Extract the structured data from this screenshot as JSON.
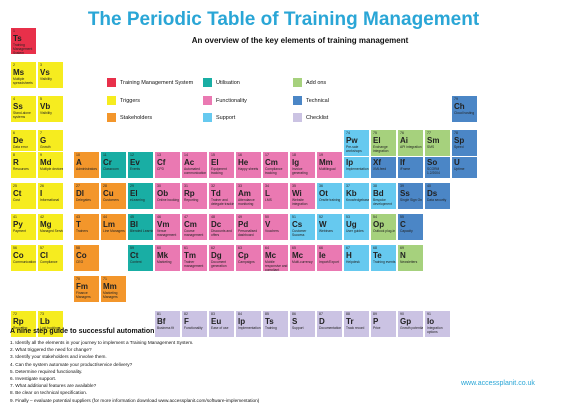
{
  "title": "The Periodic Table of Training Management",
  "subtitle": "An overview of the key elements of training management",
  "colors": {
    "yellow": "#f6ec1f",
    "red": "#e8304a",
    "orange": "#f3962b",
    "teal": "#19aea4",
    "pink": "#ea79b2",
    "lightblue": "#66c9ef",
    "green": "#a6d17d",
    "blue": "#4b86c6",
    "lavender": "#cbc3e3",
    "title_blue": "#2aa6d6"
  },
  "legend": [
    {
      "label": "Training Management System",
      "color": "red"
    },
    {
      "label": "Utilisation",
      "color": "teal"
    },
    {
      "label": "Add ons",
      "color": "green"
    },
    {
      "label": "Triggers",
      "color": "yellow"
    },
    {
      "label": "Functionality",
      "color": "pink"
    },
    {
      "label": "Technical",
      "color": "blue"
    },
    {
      "label": "Stakeholders",
      "color": "orange"
    },
    {
      "label": "Support",
      "color": "lightblue"
    },
    {
      "label": "Checklist",
      "color": "lavender"
    }
  ],
  "elements": [
    {
      "num": "1",
      "sym": "Ts",
      "name": "Training Management System",
      "color": "red"
    },
    {
      "num": "2",
      "sym": "Ms",
      "name": "Multiple spreadsheets",
      "color": "yellow"
    },
    {
      "num": "3",
      "sym": "Vs",
      "name": "Visibility",
      "color": "yellow"
    },
    {
      "num": "4",
      "sym": "Ss",
      "name": "Stand-alone systems",
      "color": "yellow"
    },
    {
      "num": "5",
      "sym": "Vb",
      "name": "Visibility",
      "color": "yellow"
    },
    {
      "num": "6",
      "sym": "De",
      "name": "Data error",
      "color": "yellow"
    },
    {
      "num": "7",
      "sym": "G",
      "name": "Growth",
      "color": "yellow"
    },
    {
      "num": "8",
      "sym": "R",
      "name": "Resources",
      "color": "yellow"
    },
    {
      "num": "9",
      "sym": "Md",
      "name": "Multiple devices",
      "color": "yellow"
    },
    {
      "num": "10",
      "sym": "A",
      "name": "Administrators",
      "color": "orange"
    },
    {
      "num": "11",
      "sym": "Cr",
      "name": "Classroom",
      "color": "teal"
    },
    {
      "num": "12",
      "sym": "Ev",
      "name": "Events",
      "color": "teal"
    },
    {
      "num": "13",
      "sym": "Cf",
      "name": "CPD",
      "color": "pink"
    },
    {
      "num": "14",
      "sym": "Ac",
      "name": "Automated communication",
      "color": "pink"
    },
    {
      "num": "15",
      "sym": "El",
      "name": "Equipment tracking",
      "color": "pink"
    },
    {
      "num": "16",
      "sym": "He",
      "name": "Happy sheets",
      "color": "pink"
    },
    {
      "num": "17",
      "sym": "Cm",
      "name": "Compliance tracking",
      "color": "pink"
    },
    {
      "num": "18",
      "sym": "Ig",
      "name": "Invoice generating",
      "color": "pink"
    },
    {
      "num": "19",
      "sym": "Mm",
      "name": "Multilingual",
      "color": "pink"
    },
    {
      "num": "20",
      "sym": "Ip",
      "name": "Implementation",
      "color": "lightblue"
    },
    {
      "num": "21",
      "sym": "Xf",
      "name": "XMLfeed",
      "color": "blue"
    },
    {
      "num": "22",
      "sym": "If",
      "name": "iFrame",
      "color": "blue"
    },
    {
      "num": "23",
      "sym": "So",
      "name": "SCORM 1.2/2004",
      "color": "blue"
    },
    {
      "num": "24",
      "sym": "U",
      "name": "Uptime",
      "color": "blue"
    },
    {
      "num": "25",
      "sym": "Ct",
      "name": "Cost",
      "color": "yellow"
    },
    {
      "num": "26",
      "sym": "I",
      "name": "Informational",
      "color": "yellow"
    },
    {
      "num": "27",
      "sym": "Dl",
      "name": "Delegates",
      "color": "orange"
    },
    {
      "num": "28",
      "sym": "Cu",
      "name": "Customers",
      "color": "orange"
    },
    {
      "num": "29",
      "sym": "El",
      "name": "eLearning",
      "color": "teal"
    },
    {
      "num": "30",
      "sym": "Ob",
      "name": "Online booking",
      "color": "pink"
    },
    {
      "num": "31",
      "sym": "Rp",
      "name": "Reporting",
      "color": "pink"
    },
    {
      "num": "32",
      "sym": "Td",
      "name": "Trainer and delegate tracking",
      "color": "pink"
    },
    {
      "num": "33",
      "sym": "Am",
      "name": "Attendance monitoring",
      "color": "pink"
    },
    {
      "num": "34",
      "sym": "L",
      "name": "LMS",
      "color": "pink"
    },
    {
      "num": "35",
      "sym": "Wi",
      "name": "Website integration",
      "color": "pink"
    },
    {
      "num": "36",
      "sym": "Ot",
      "name": "Onsite training",
      "color": "lightblue"
    },
    {
      "num": "37",
      "sym": "Kb",
      "name": "Knowledgebase",
      "color": "lightblue"
    },
    {
      "num": "38",
      "sym": "Bd",
      "name": "Bespoke development",
      "color": "lightblue"
    },
    {
      "num": "39",
      "sym": "Ss",
      "name": "Single Sign On",
      "color": "blue"
    },
    {
      "num": "40",
      "sym": "Ds",
      "name": "Data security",
      "color": "blue"
    },
    {
      "num": "41",
      "sym": "Py",
      "name": "Payment",
      "color": "yellow"
    },
    {
      "num": "42",
      "sym": "Mg",
      "name": "Managed Service",
      "color": "yellow"
    },
    {
      "num": "43",
      "sym": "T",
      "name": "Trainers",
      "color": "orange"
    },
    {
      "num": "44",
      "sym": "Lm",
      "name": "Line Managers",
      "color": "orange"
    },
    {
      "num": "45",
      "sym": "Bl",
      "name": "Blended Learning",
      "color": "teal"
    },
    {
      "num": "46",
      "sym": "Vm",
      "name": "Venue management",
      "color": "pink"
    },
    {
      "num": "47",
      "sym": "Cm",
      "name": "Course management",
      "color": "pink"
    },
    {
      "num": "48",
      "sym": "Dc",
      "name": "Discounts and offers",
      "color": "pink"
    },
    {
      "num": "49",
      "sym": "Pd",
      "name": "Personalised dashboard",
      "color": "pink"
    },
    {
      "num": "50",
      "sym": "V",
      "name": "Vouchers",
      "color": "pink"
    },
    {
      "num": "51",
      "sym": "Cs",
      "name": "Customer Success",
      "color": "lightblue"
    },
    {
      "num": "52",
      "sym": "W",
      "name": "Webinars",
      "color": "lightblue"
    },
    {
      "num": "53",
      "sym": "Ug",
      "name": "User guides",
      "color": "lightblue"
    },
    {
      "num": "54",
      "sym": "Op",
      "name": "Outlook plug-in",
      "color": "green"
    },
    {
      "num": "55",
      "sym": "C",
      "name": "Capacity",
      "color": "blue"
    },
    {
      "num": "56",
      "sym": "Co",
      "name": "Communication",
      "color": "yellow"
    },
    {
      "num": "57",
      "sym": "Cl",
      "name": "Compliance",
      "color": "yellow"
    },
    {
      "num": "58",
      "sym": "Co",
      "name": "CEO",
      "color": "orange"
    },
    {
      "num": "59",
      "sym": "Ct",
      "name": "Content",
      "color": "teal"
    },
    {
      "num": "60",
      "sym": "Mk",
      "name": "Marketing",
      "color": "pink"
    },
    {
      "num": "61",
      "sym": "Tm",
      "name": "Trainer management",
      "color": "pink"
    },
    {
      "num": "62",
      "sym": "Dg",
      "name": "Document generation",
      "color": "pink"
    },
    {
      "num": "63",
      "sym": "Cp",
      "name": "Campaigns",
      "color": "pink"
    },
    {
      "num": "64",
      "sym": "Mc",
      "name": "Mobile responsive and compliant",
      "color": "pink"
    },
    {
      "num": "65",
      "sym": "Mc",
      "name": "Multi-currency",
      "color": "pink"
    },
    {
      "num": "66",
      "sym": "Ie",
      "name": "Import/Export",
      "color": "pink"
    },
    {
      "num": "67",
      "sym": "H",
      "name": "Helpdesk",
      "color": "lightblue"
    },
    {
      "num": "68",
      "sym": "Te",
      "name": "Training events",
      "color": "lightblue"
    },
    {
      "num": "69",
      "sym": "N",
      "name": "Newsletters",
      "color": "green"
    },
    {
      "num": "70",
      "sym": "Fm",
      "name": "Finance Managers",
      "color": "orange"
    },
    {
      "num": "71",
      "sym": "Mm",
      "name": "Marketing Managers",
      "color": "orange"
    },
    {
      "num": "72",
      "sym": "Rp",
      "name": "Reporting",
      "color": "yellow"
    },
    {
      "num": "73",
      "sym": "Lb",
      "name": "Lost bookings",
      "color": "yellow"
    },
    {
      "num": "74",
      "sym": "Pw",
      "name": "Pre-sale workshops",
      "color": "lightblue"
    },
    {
      "num": "75",
      "sym": "El",
      "name": "Exchange integration",
      "color": "green"
    },
    {
      "num": "76",
      "sym": "Ai",
      "name": "API integration",
      "color": "green"
    },
    {
      "num": "77",
      "sym": "Sm",
      "name": "SMS",
      "color": "green"
    },
    {
      "num": "78",
      "sym": "Sp",
      "name": "Speed",
      "color": "blue"
    },
    {
      "num": "79",
      "sym": "Ch",
      "name": "Cloud hosting",
      "color": "blue"
    },
    {
      "num": "81",
      "sym": "Bf",
      "name": "Business fit",
      "color": "lavender"
    },
    {
      "num": "82",
      "sym": "F",
      "name": "Functionality",
      "color": "lavender"
    },
    {
      "num": "83",
      "sym": "Eu",
      "name": "Ease of use",
      "color": "lavender"
    },
    {
      "num": "84",
      "sym": "Ip",
      "name": "Implementation",
      "color": "lavender"
    },
    {
      "num": "85",
      "sym": "Ts",
      "name": "Training",
      "color": "lavender"
    },
    {
      "num": "86",
      "sym": "S",
      "name": "Support",
      "color": "lavender"
    },
    {
      "num": "87",
      "sym": "D",
      "name": "Documentation",
      "color": "lavender"
    },
    {
      "num": "88",
      "sym": "Tr",
      "name": "Track record",
      "color": "lavender"
    },
    {
      "num": "89",
      "sym": "P",
      "name": "Price",
      "color": "lavender"
    },
    {
      "num": "90",
      "sym": "Gp",
      "name": "Growth potential",
      "color": "lavender"
    },
    {
      "num": "91",
      "sym": "Io",
      "name": "Integration options",
      "color": "lavender"
    }
  ],
  "steps_title": "A nine step guide to successful automation",
  "steps": [
    "1. Identify all the elements in your journey to implement a Training Management System.",
    "2. What triggered the need for change?",
    "3. Identify your stakeholders and involve them.",
    "4. Can the system automate your product/service delivery?",
    "5. Determine required functionality.",
    "6. Investigate support.",
    "7. What additional features are available?",
    "8. Be clear on technical specification.",
    "9. Finally – evaluate potential suppliers (for more information download www.accessplanit.com/software-implementation)"
  ],
  "website": "www.accessplanit.co.uk"
}
